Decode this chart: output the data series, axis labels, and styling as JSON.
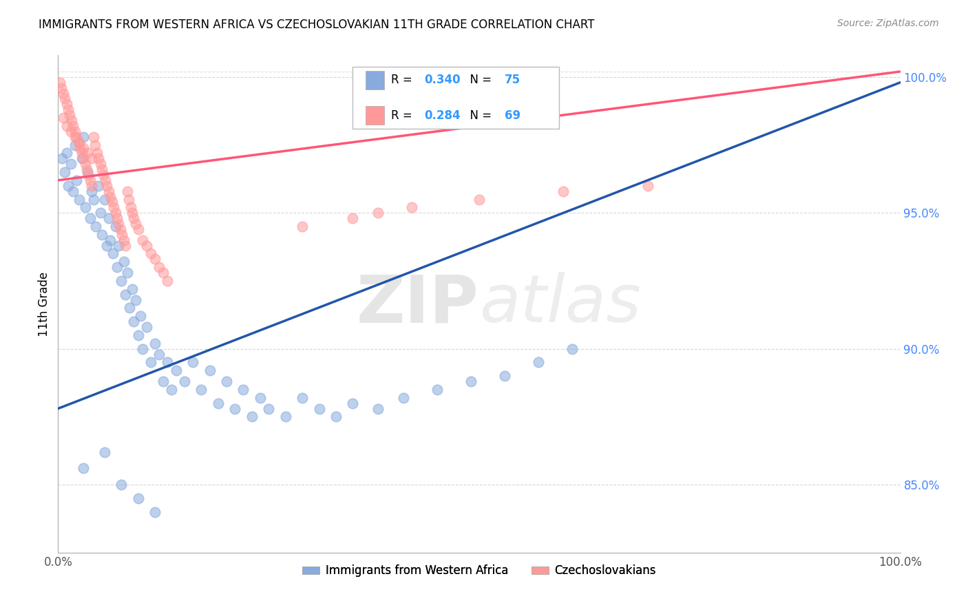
{
  "title": "IMMIGRANTS FROM WESTERN AFRICA VS CZECHOSLOVAKIAN 11TH GRADE CORRELATION CHART",
  "source": "Source: ZipAtlas.com",
  "ylabel": "11th Grade",
  "blue_label": "Immigrants from Western Africa",
  "pink_label": "Czechoslovakians",
  "blue_R": 0.34,
  "blue_N": 75,
  "pink_R": 0.284,
  "pink_N": 69,
  "blue_color": "#88AADD",
  "pink_color": "#FF9999",
  "blue_line_color": "#2255AA",
  "pink_line_color": "#FF5577",
  "xlim": [
    0.0,
    1.0
  ],
  "ylim": [
    0.825,
    1.008
  ],
  "right_yticks": [
    0.85,
    0.9,
    0.95,
    1.0
  ],
  "right_yticklabels": [
    "85.0%",
    "90.0%",
    "95.0%",
    "100.0%"
  ],
  "xticks": [
    0.0,
    1.0
  ],
  "xticklabels": [
    "0.0%",
    "100.0%"
  ],
  "watermark_zip": "ZIP",
  "watermark_atlas": "atlas",
  "grid_color": "#CCCCCC",
  "background_color": "#FFFFFF",
  "blue_scatter_x": [
    0.005,
    0.008,
    0.01,
    0.012,
    0.015,
    0.018,
    0.02,
    0.022,
    0.025,
    0.028,
    0.03,
    0.032,
    0.035,
    0.038,
    0.04,
    0.042,
    0.045,
    0.048,
    0.05,
    0.052,
    0.055,
    0.058,
    0.06,
    0.062,
    0.065,
    0.068,
    0.07,
    0.072,
    0.075,
    0.078,
    0.08,
    0.082,
    0.085,
    0.088,
    0.09,
    0.092,
    0.095,
    0.098,
    0.1,
    0.105,
    0.11,
    0.115,
    0.12,
    0.125,
    0.13,
    0.135,
    0.14,
    0.15,
    0.16,
    0.17,
    0.18,
    0.19,
    0.2,
    0.21,
    0.22,
    0.23,
    0.24,
    0.25,
    0.27,
    0.29,
    0.31,
    0.33,
    0.35,
    0.38,
    0.41,
    0.45,
    0.49,
    0.53,
    0.57,
    0.61,
    0.03,
    0.055,
    0.075,
    0.095,
    0.115
  ],
  "blue_scatter_y": [
    0.97,
    0.965,
    0.972,
    0.96,
    0.968,
    0.958,
    0.975,
    0.962,
    0.955,
    0.97,
    0.978,
    0.952,
    0.965,
    0.948,
    0.958,
    0.955,
    0.945,
    0.96,
    0.95,
    0.942,
    0.955,
    0.938,
    0.948,
    0.94,
    0.935,
    0.945,
    0.93,
    0.938,
    0.925,
    0.932,
    0.92,
    0.928,
    0.915,
    0.922,
    0.91,
    0.918,
    0.905,
    0.912,
    0.9,
    0.908,
    0.895,
    0.902,
    0.898,
    0.888,
    0.895,
    0.885,
    0.892,
    0.888,
    0.895,
    0.885,
    0.892,
    0.88,
    0.888,
    0.878,
    0.885,
    0.875,
    0.882,
    0.878,
    0.875,
    0.882,
    0.878,
    0.875,
    0.88,
    0.878,
    0.882,
    0.885,
    0.888,
    0.89,
    0.895,
    0.9,
    0.856,
    0.862,
    0.85,
    0.845,
    0.84
  ],
  "pink_scatter_x": [
    0.002,
    0.004,
    0.006,
    0.008,
    0.01,
    0.012,
    0.014,
    0.016,
    0.018,
    0.02,
    0.022,
    0.024,
    0.026,
    0.028,
    0.03,
    0.032,
    0.034,
    0.036,
    0.038,
    0.04,
    0.042,
    0.044,
    0.046,
    0.048,
    0.05,
    0.052,
    0.054,
    0.056,
    0.058,
    0.06,
    0.062,
    0.064,
    0.066,
    0.068,
    0.07,
    0.072,
    0.074,
    0.076,
    0.078,
    0.08,
    0.082,
    0.084,
    0.086,
    0.088,
    0.09,
    0.092,
    0.095,
    0.1,
    0.105,
    0.11,
    0.115,
    0.12,
    0.125,
    0.13,
    0.006,
    0.01,
    0.015,
    0.02,
    0.025,
    0.03,
    0.035,
    0.04,
    0.29,
    0.35,
    0.38,
    0.42,
    0.5,
    0.6,
    0.7
  ],
  "pink_scatter_y": [
    0.998,
    0.996,
    0.994,
    0.992,
    0.99,
    0.988,
    0.986,
    0.984,
    0.982,
    0.98,
    0.978,
    0.976,
    0.974,
    0.972,
    0.97,
    0.968,
    0.966,
    0.964,
    0.962,
    0.96,
    0.978,
    0.975,
    0.972,
    0.97,
    0.968,
    0.966,
    0.964,
    0.962,
    0.96,
    0.958,
    0.956,
    0.954,
    0.952,
    0.95,
    0.948,
    0.946,
    0.944,
    0.942,
    0.94,
    0.938,
    0.958,
    0.955,
    0.952,
    0.95,
    0.948,
    0.946,
    0.944,
    0.94,
    0.938,
    0.935,
    0.933,
    0.93,
    0.928,
    0.925,
    0.985,
    0.982,
    0.98,
    0.978,
    0.976,
    0.974,
    0.972,
    0.97,
    0.945,
    0.948,
    0.95,
    0.952,
    0.955,
    0.958,
    0.96
  ],
  "blue_trend_x": [
    0.0,
    1.0
  ],
  "blue_trend_y": [
    0.878,
    0.998
  ],
  "pink_trend_x": [
    0.0,
    1.0
  ],
  "pink_trend_y": [
    0.962,
    1.002
  ]
}
